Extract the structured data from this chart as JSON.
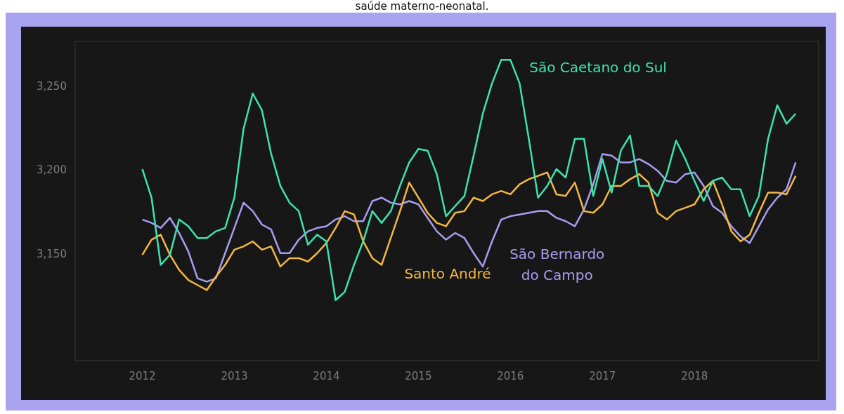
{
  "chart_data": {
    "type": "line",
    "title": "saúde materno-neonatal.",
    "x": [
      2012.0,
      2012.1,
      2012.2,
      2012.3,
      2012.4,
      2012.5,
      2012.6,
      2012.7,
      2012.8,
      2012.9,
      2013.0,
      2013.1,
      2013.2,
      2013.3,
      2013.4,
      2013.5,
      2013.6,
      2013.7,
      2013.8,
      2013.9,
      2014.0,
      2014.1,
      2014.2,
      2014.3,
      2014.4,
      2014.5,
      2014.6,
      2014.7,
      2014.8,
      2014.9,
      2015.0,
      2015.1,
      2015.2,
      2015.3,
      2015.4,
      2015.5,
      2015.6,
      2015.7,
      2015.8,
      2015.9,
      2016.0,
      2016.1,
      2016.2,
      2016.3,
      2016.4,
      2016.5,
      2016.6,
      2016.7,
      2016.8,
      2016.9,
      2017.0,
      2017.1,
      2017.2,
      2017.3,
      2017.4,
      2017.5,
      2017.6,
      2017.7,
      2017.8,
      2017.9,
      2018.0,
      2018.1,
      2018.2,
      2018.3,
      2018.4,
      2018.5,
      2018.6,
      2018.7,
      2018.8,
      2018.9,
      2019.0,
      2019.1
    ],
    "series": [
      {
        "name": "São Caetano do Sul",
        "color": "#3de3ae",
        "values": [
          3201,
          3184,
          3144,
          3150,
          3171,
          3167,
          3160,
          3160,
          3164,
          3166,
          3184,
          3225,
          3246,
          3236,
          3210,
          3191,
          3181,
          3176,
          3156,
          3162,
          3158,
          3123,
          3128,
          3144,
          3158,
          3176,
          3169,
          3176,
          3191,
          3205,
          3213,
          3212,
          3198,
          3173,
          3179,
          3185,
          3209,
          3234,
          3252,
          3266,
          3266,
          3252,
          3219,
          3184,
          3191,
          3201,
          3196,
          3219,
          3219,
          3185,
          3207,
          3187,
          3212,
          3221,
          3191,
          3191,
          3185,
          3198,
          3218,
          3207,
          3194,
          3182,
          3194,
          3196,
          3189,
          3189,
          3173,
          3185,
          3219,
          3239,
          3228,
          3234
        ]
      },
      {
        "name": "Santo André",
        "color": "#f3b843",
        "values": [
          3150,
          3159,
          3162,
          3150,
          3141,
          3135,
          3132,
          3129,
          3137,
          3144,
          3153,
          3155,
          3158,
          3153,
          3155,
          3143,
          3148,
          3148,
          3146,
          3151,
          3157,
          3166,
          3176,
          3174,
          3158,
          3148,
          3144,
          3160,
          3176,
          3193,
          3184,
          3175,
          3169,
          3167,
          3175,
          3176,
          3184,
          3182,
          3186,
          3188,
          3186,
          3192,
          3195,
          3197,
          3199,
          3186,
          3185,
          3193,
          3176,
          3175,
          3180,
          3191,
          3191,
          3195,
          3198,
          3193,
          3175,
          3171,
          3176,
          3178,
          3180,
          3189,
          3194,
          3180,
          3164,
          3158,
          3162,
          3175,
          3187,
          3187,
          3186,
          3197
        ]
      },
      {
        "name": "São Bernardo do Campo",
        "color": "#a99df0",
        "values": [
          3171,
          3169,
          3166,
          3172,
          3163,
          3152,
          3136,
          3134,
          3136,
          3151,
          3166,
          3181,
          3176,
          3168,
          3165,
          3151,
          3151,
          3159,
          3164,
          3166,
          3167,
          3171,
          3173,
          3170,
          3170,
          3182,
          3184,
          3181,
          3180,
          3182,
          3180,
          3172,
          3164,
          3159,
          3163,
          3160,
          3151,
          3143,
          3158,
          3171,
          3173,
          3174,
          3175,
          3176,
          3176,
          3172,
          3170,
          3167,
          3177,
          3192,
          3210,
          3209,
          3205,
          3205,
          3207,
          3204,
          3200,
          3194,
          3193,
          3198,
          3199,
          3191,
          3179,
          3175,
          3167,
          3161,
          3157,
          3167,
          3177,
          3184,
          3189,
          3205
        ]
      }
    ],
    "xlim": [
      2011.27,
      2019.35
    ],
    "xticks": [
      2012,
      2013,
      2014,
      2015,
      2016,
      2017,
      2018
    ],
    "ylim": [
      3087,
      3277
    ],
    "yticks": [
      {
        "value": 3150,
        "label": "3,150"
      },
      {
        "value": 3200,
        "label": "3,200"
      },
      {
        "value": 3250,
        "label": "3,250"
      }
    ],
    "grid": false,
    "legend": false,
    "marker": "none",
    "line_style": "solid"
  }
}
